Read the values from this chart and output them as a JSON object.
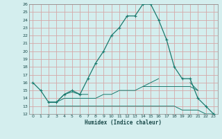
{
  "xlabel": "Humidex (Indice chaleur)",
  "bg_color": "#d4eeee",
  "grid_color": "#d4a8a8",
  "line_color": "#1a7a6e",
  "xlim": [
    -0.5,
    23.5
  ],
  "ylim": [
    12,
    26
  ],
  "xticks": [
    0,
    1,
    2,
    3,
    4,
    5,
    6,
    7,
    8,
    9,
    10,
    11,
    12,
    13,
    14,
    15,
    16,
    17,
    18,
    19,
    20,
    21,
    22,
    23
  ],
  "yticks": [
    12,
    13,
    14,
    15,
    16,
    17,
    18,
    19,
    20,
    21,
    22,
    23,
    24,
    25,
    26
  ],
  "series": [
    [
      16.0,
      15.0,
      13.5,
      13.5,
      14.5,
      15.0,
      14.5,
      16.5,
      18.5,
      20.0,
      22.0,
      23.0,
      24.5,
      24.5,
      26.0,
      26.0,
      24.0,
      21.5,
      18.0,
      16.5,
      16.5,
      14.0,
      13.0,
      12.0
    ],
    [
      null,
      null,
      13.5,
      13.5,
      14.5,
      14.8,
      14.5,
      14.5,
      null,
      null,
      null,
      null,
      null,
      null,
      15.5,
      16.0,
      16.5,
      null,
      null,
      null,
      16.0,
      15.0,
      null,
      null
    ],
    [
      null,
      null,
      13.5,
      13.5,
      14.0,
      14.0,
      14.0,
      14.0,
      14.0,
      14.5,
      14.5,
      15.0,
      15.0,
      15.0,
      15.5,
      15.5,
      15.5,
      15.5,
      15.5,
      15.5,
      15.5,
      15.0,
      null,
      null
    ],
    [
      null,
      null,
      13.0,
      13.0,
      13.0,
      13.0,
      13.0,
      13.0,
      13.0,
      13.0,
      13.0,
      13.0,
      13.0,
      13.0,
      13.0,
      13.0,
      13.0,
      13.0,
      13.0,
      12.5,
      12.5,
      12.5,
      12.0,
      12.0
    ]
  ]
}
